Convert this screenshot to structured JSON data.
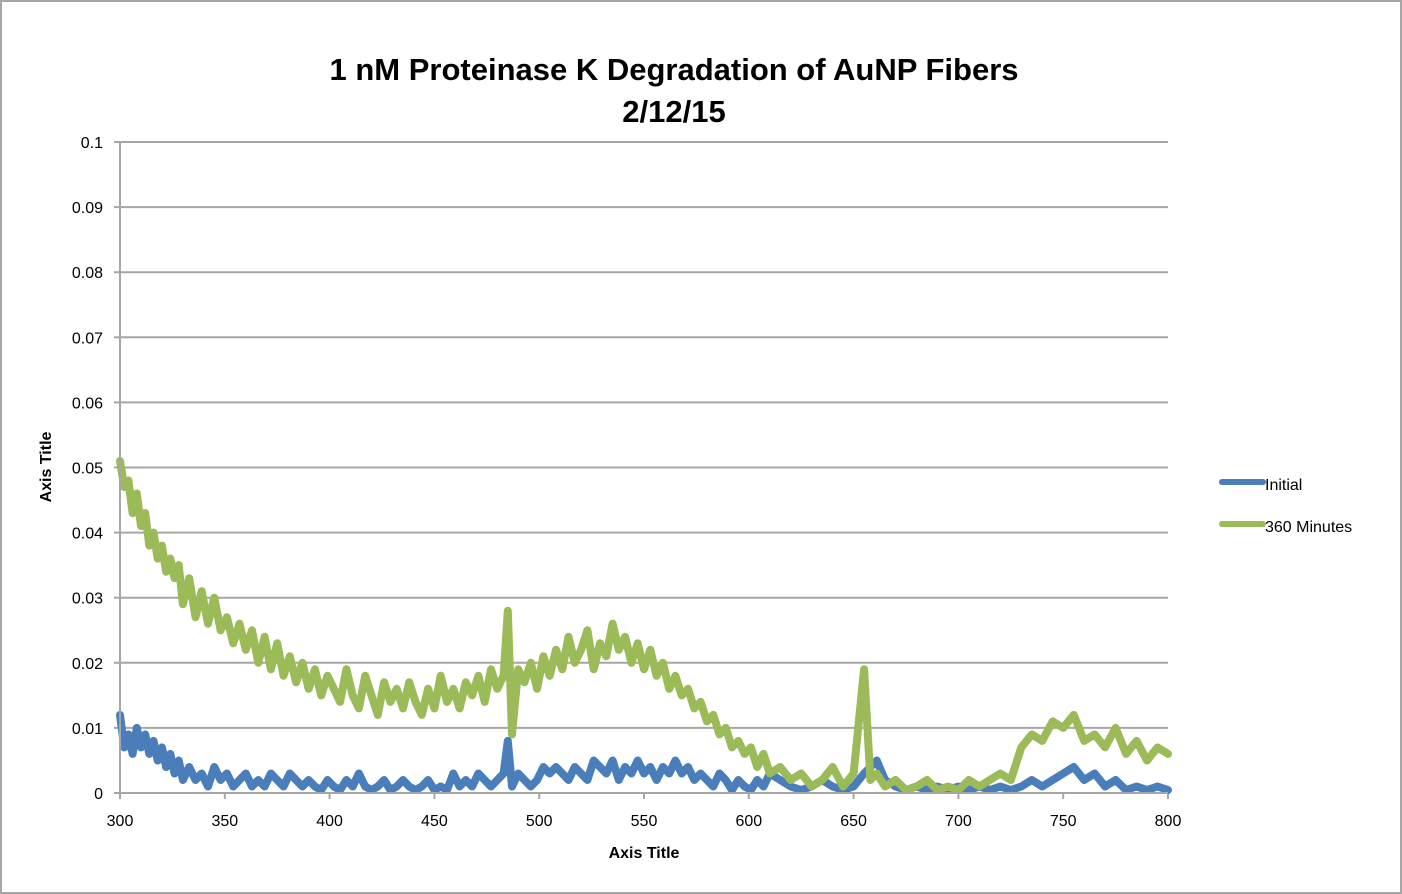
{
  "chart_data": {
    "type": "line",
    "title": "1 nM Proteinase K Degradation of AuNP Fibers",
    "subtitle": "2/12/15",
    "xlabel": "Axis Title",
    "ylabel": "Axis Title",
    "xlim": [
      300,
      800
    ],
    "ylim": [
      0,
      0.1
    ],
    "x_ticks": [
      "300",
      "350",
      "400",
      "450",
      "500",
      "550",
      "600",
      "650",
      "700",
      "750",
      "800"
    ],
    "y_ticks": [
      "0",
      "0.01",
      "0.02",
      "0.03",
      "0.04",
      "0.05",
      "0.06",
      "0.07",
      "0.08",
      "0.09",
      "0.1"
    ],
    "x_tick_values": [
      300,
      350,
      400,
      450,
      500,
      550,
      600,
      650,
      700,
      750,
      800
    ],
    "y_tick_values": [
      0,
      0.01,
      0.02,
      0.03,
      0.04,
      0.05,
      0.06,
      0.07,
      0.08,
      0.09,
      0.1
    ],
    "grid": true,
    "legend_position": "right",
    "series": [
      {
        "name": "Initial",
        "color": "#4a7ebb",
        "x": [
          300,
          302,
          304,
          306,
          308,
          310,
          312,
          314,
          316,
          318,
          320,
          322,
          324,
          326,
          328,
          330,
          333,
          336,
          339,
          342,
          345,
          348,
          351,
          354,
          357,
          360,
          363,
          366,
          369,
          372,
          375,
          378,
          381,
          384,
          387,
          390,
          393,
          396,
          399,
          402,
          405,
          408,
          411,
          414,
          417,
          420,
          423,
          426,
          429,
          432,
          435,
          438,
          441,
          444,
          447,
          450,
          453,
          456,
          459,
          462,
          465,
          468,
          471,
          474,
          477,
          480,
          483,
          485,
          487,
          490,
          493,
          496,
          499,
          502,
          505,
          508,
          511,
          514,
          517,
          520,
          523,
          526,
          529,
          532,
          535,
          538,
          541,
          544,
          547,
          550,
          553,
          556,
          559,
          562,
          565,
          568,
          571,
          574,
          577,
          580,
          583,
          586,
          589,
          592,
          595,
          598,
          601,
          604,
          607,
          610,
          615,
          620,
          625,
          630,
          635,
          640,
          645,
          650,
          655,
          658,
          661,
          665,
          670,
          675,
          680,
          685,
          690,
          695,
          700,
          705,
          710,
          715,
          720,
          725,
          730,
          735,
          740,
          745,
          750,
          755,
          760,
          765,
          770,
          775,
          780,
          785,
          790,
          795,
          800
        ],
        "y": [
          0.012,
          0.007,
          0.009,
          0.006,
          0.01,
          0.007,
          0.009,
          0.006,
          0.008,
          0.005,
          0.007,
          0.004,
          0.006,
          0.003,
          0.005,
          0.002,
          0.004,
          0.002,
          0.003,
          0.001,
          0.004,
          0.002,
          0.003,
          0.001,
          0.002,
          0.003,
          0.001,
          0.002,
          0.001,
          0.003,
          0.002,
          0.001,
          0.003,
          0.002,
          0.001,
          0.002,
          0.001,
          0.0,
          0.002,
          0.001,
          0.0,
          0.002,
          0.001,
          0.003,
          0.001,
          0.0,
          0.001,
          0.002,
          0.0,
          0.001,
          0.002,
          0.001,
          0.0,
          0.001,
          0.002,
          0.0,
          0.001,
          0.0,
          0.003,
          0.001,
          0.002,
          0.001,
          0.003,
          0.002,
          0.001,
          0.002,
          0.003,
          0.008,
          0.001,
          0.003,
          0.002,
          0.001,
          0.002,
          0.004,
          0.003,
          0.004,
          0.003,
          0.002,
          0.004,
          0.003,
          0.002,
          0.005,
          0.004,
          0.003,
          0.005,
          0.002,
          0.004,
          0.003,
          0.005,
          0.003,
          0.004,
          0.002,
          0.004,
          0.003,
          0.005,
          0.003,
          0.004,
          0.002,
          0.003,
          0.002,
          0.001,
          0.003,
          0.002,
          0.0,
          0.002,
          0.001,
          0.0,
          0.002,
          0.001,
          0.003,
          0.002,
          0.001,
          0.0,
          0.001,
          0.002,
          0.001,
          0.0,
          0.001,
          0.003,
          0.004,
          0.005,
          0.002,
          0.001,
          0.0,
          0.001,
          0.0,
          0.001,
          0.0,
          0.001,
          0.0,
          0.001,
          0.0,
          0.001,
          0.0,
          0.001,
          0.002,
          0.001,
          0.002,
          0.003,
          0.004,
          0.002,
          0.003,
          0.001,
          0.002,
          0.0,
          0.001,
          0.0,
          0.001,
          0.0
        ]
      },
      {
        "name": "360 Minutes",
        "color": "#9bbb59",
        "x": [
          300,
          302,
          304,
          306,
          308,
          310,
          312,
          314,
          316,
          318,
          320,
          322,
          324,
          326,
          328,
          330,
          333,
          336,
          339,
          342,
          345,
          348,
          351,
          354,
          357,
          360,
          363,
          366,
          369,
          372,
          375,
          378,
          381,
          384,
          387,
          390,
          393,
          396,
          399,
          402,
          405,
          408,
          411,
          414,
          417,
          420,
          423,
          426,
          429,
          432,
          435,
          438,
          441,
          444,
          447,
          450,
          453,
          456,
          459,
          462,
          465,
          468,
          471,
          474,
          477,
          480,
          483,
          485,
          487,
          490,
          493,
          496,
          499,
          502,
          505,
          508,
          511,
          514,
          517,
          520,
          523,
          526,
          529,
          532,
          535,
          538,
          541,
          544,
          547,
          550,
          553,
          556,
          559,
          562,
          565,
          568,
          571,
          574,
          577,
          580,
          583,
          586,
          589,
          592,
          595,
          598,
          601,
          604,
          607,
          610,
          615,
          620,
          625,
          630,
          635,
          640,
          645,
          650,
          655,
          658,
          661,
          665,
          670,
          675,
          680,
          685,
          690,
          695,
          700,
          705,
          710,
          715,
          720,
          725,
          730,
          735,
          740,
          745,
          750,
          755,
          760,
          765,
          770,
          775,
          780,
          785,
          790,
          795,
          800
        ],
        "y": [
          0.051,
          0.047,
          0.048,
          0.043,
          0.046,
          0.041,
          0.043,
          0.038,
          0.04,
          0.036,
          0.038,
          0.034,
          0.036,
          0.033,
          0.035,
          0.029,
          0.033,
          0.027,
          0.031,
          0.026,
          0.03,
          0.025,
          0.027,
          0.023,
          0.026,
          0.022,
          0.025,
          0.02,
          0.024,
          0.019,
          0.023,
          0.018,
          0.021,
          0.017,
          0.02,
          0.016,
          0.019,
          0.015,
          0.018,
          0.016,
          0.014,
          0.019,
          0.015,
          0.013,
          0.018,
          0.015,
          0.012,
          0.017,
          0.014,
          0.016,
          0.013,
          0.017,
          0.014,
          0.012,
          0.016,
          0.013,
          0.018,
          0.014,
          0.016,
          0.013,
          0.017,
          0.015,
          0.018,
          0.014,
          0.019,
          0.016,
          0.018,
          0.028,
          0.009,
          0.019,
          0.017,
          0.02,
          0.016,
          0.021,
          0.018,
          0.022,
          0.019,
          0.024,
          0.02,
          0.022,
          0.025,
          0.019,
          0.023,
          0.021,
          0.026,
          0.022,
          0.024,
          0.02,
          0.023,
          0.019,
          0.022,
          0.018,
          0.02,
          0.016,
          0.018,
          0.015,
          0.016,
          0.013,
          0.014,
          0.011,
          0.012,
          0.009,
          0.01,
          0.007,
          0.008,
          0.006,
          0.007,
          0.004,
          0.006,
          0.003,
          0.004,
          0.002,
          0.003,
          0.001,
          0.002,
          0.004,
          0.001,
          0.003,
          0.019,
          0.002,
          0.003,
          0.001,
          0.002,
          0.0,
          0.001,
          0.002,
          0.0,
          0.001,
          0.0,
          0.002,
          0.001,
          0.002,
          0.003,
          0.002,
          0.007,
          0.009,
          0.008,
          0.011,
          0.01,
          0.012,
          0.008,
          0.009,
          0.007,
          0.01,
          0.006,
          0.008,
          0.005,
          0.007,
          0.006
        ]
      }
    ]
  }
}
